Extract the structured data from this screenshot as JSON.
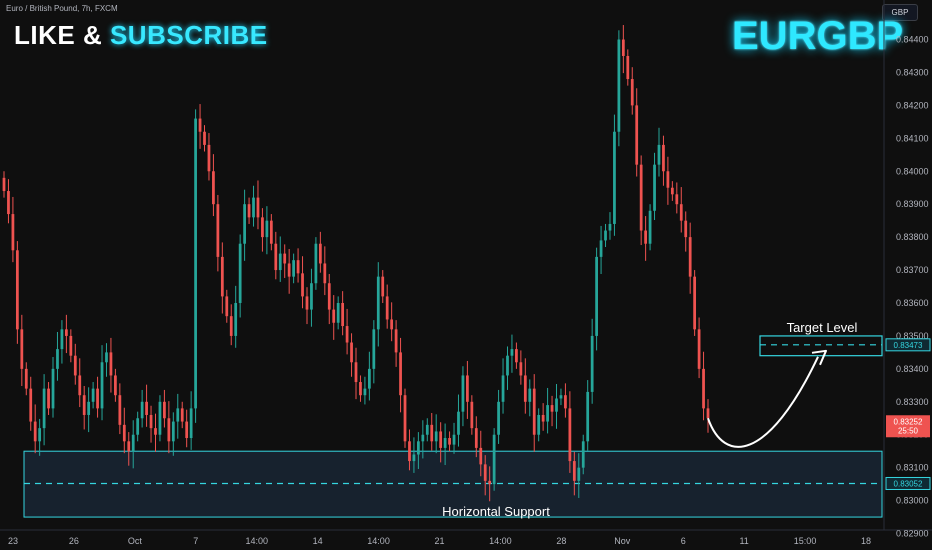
{
  "header": {
    "symbol_line": "Euro / British Pound, 7h, FXCM",
    "currency_button": "GBP",
    "promo_like": "LIKE &",
    "promo_subscribe": "SUBSCRIBE",
    "pair": "EURGBP"
  },
  "colors": {
    "background": "#0f0f0f",
    "up_candle": "#26a69a",
    "down_candle": "#ef5350",
    "zone_fill": "#1b2a3a",
    "zone_border": "#35d6e0",
    "arrow": "#ffffff"
  },
  "chart_data": {
    "type": "candlestick",
    "symbol": "EURGBP",
    "timeframe": "7h",
    "ylim": [
      0.8285,
      0.8452
    ],
    "y_ticks": [
      0.829,
      0.83,
      0.831,
      0.832,
      0.833,
      0.834,
      0.835,
      0.836,
      0.837,
      0.838,
      0.839,
      0.84,
      0.841,
      0.842,
      0.843,
      0.844
    ],
    "y_tick_labels": [
      "0.82900",
      "0.83000",
      "0.83100",
      "0.83200",
      "0.83300",
      "0.83400",
      "0.83500",
      "0.83600",
      "0.83700",
      "0.83800",
      "0.83900",
      "0.84000",
      "0.84100",
      "0.84200",
      "0.84300",
      "0.84400"
    ],
    "x_tick_labels": [
      "23",
      "26",
      "Oct",
      "7",
      "14:00",
      "14",
      "14:00",
      "21",
      "14:00",
      "28",
      "Nov",
      "6",
      "11",
      "15:00",
      "18"
    ],
    "price_tags": {
      "current": "0.83252",
      "countdown": "25:50",
      "target": "0.83473",
      "support": "0.83052"
    },
    "annotations": {
      "target_label": "Target Level",
      "support_label": "Horizontal Support"
    },
    "levels": {
      "target": 0.83473,
      "support": 0.83052,
      "support_zone": [
        0.8295,
        0.8315
      ],
      "target_zone": [
        0.8344,
        0.835
      ]
    },
    "close": [
      0.8394,
      0.8387,
      0.8376,
      0.8352,
      0.834,
      0.8334,
      0.8324,
      0.8318,
      0.8322,
      0.8334,
      0.8328,
      0.834,
      0.8346,
      0.8352,
      0.835,
      0.8344,
      0.8338,
      0.8332,
      0.8326,
      0.833,
      0.8334,
      0.8328,
      0.8342,
      0.8345,
      0.8338,
      0.8332,
      0.8323,
      0.8318,
      0.8315,
      0.832,
      0.8325,
      0.833,
      0.8326,
      0.8322,
      0.832,
      0.833,
      0.8325,
      0.8318,
      0.8324,
      0.8328,
      0.8324,
      0.8319,
      0.8328,
      0.8416,
      0.8412,
      0.8408,
      0.84,
      0.839,
      0.8374,
      0.8362,
      0.8356,
      0.835,
      0.836,
      0.8378,
      0.839,
      0.8386,
      0.8392,
      0.8386,
      0.838,
      0.8385,
      0.8378,
      0.837,
      0.8375,
      0.8372,
      0.8368,
      0.8373,
      0.8369,
      0.8362,
      0.8358,
      0.8366,
      0.8378,
      0.8372,
      0.8366,
      0.8358,
      0.8354,
      0.836,
      0.8353,
      0.8348,
      0.8342,
      0.8336,
      0.8332,
      0.8334,
      0.834,
      0.8352,
      0.8368,
      0.8362,
      0.8355,
      0.8352,
      0.8345,
      0.8332,
      0.8318,
      0.8312,
      0.8314,
      0.8318,
      0.832,
      0.8323,
      0.8318,
      0.8321,
      0.8316,
      0.8319,
      0.8317,
      0.832,
      0.8327,
      0.8338,
      0.833,
      0.8322,
      0.8316,
      0.8311,
      0.8306,
      0.8305,
      0.832,
      0.833,
      0.8338,
      0.8344,
      0.8346,
      0.8342,
      0.8338,
      0.833,
      0.8334,
      0.832,
      0.8326,
      0.8324,
      0.8329,
      0.8327,
      0.8331,
      0.8332,
      0.8328,
      0.8312,
      0.8306,
      0.831,
      0.8318,
      0.8333,
      0.835,
      0.8374,
      0.8379,
      0.8382,
      0.8384,
      0.8412,
      0.844,
      0.8435,
      0.8428,
      0.842,
      0.8402,
      0.8382,
      0.8378,
      0.8388,
      0.8402,
      0.8408,
      0.84,
      0.8395,
      0.8393,
      0.839,
      0.8385,
      0.838,
      0.8368,
      0.8352,
      0.834,
      0.8328,
      0.8325
    ]
  }
}
